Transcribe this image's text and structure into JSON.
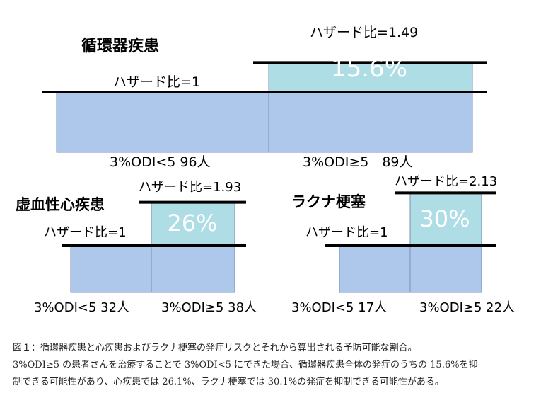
{
  "colors": {
    "base_fill": "#aec8ec",
    "excess_fill": "#aedde5",
    "outline": "#7a8fb0",
    "line": "#000000",
    "percent_text": "#ffffff"
  },
  "chart_data": [
    {
      "type": "bar",
      "title": "循環器疾患",
      "categories": [
        "3%ODI<5 96人",
        "3%ODI≥5　89人"
      ],
      "values": [
        1,
        1.49
      ],
      "value_labels": [
        "ハザード比=1",
        "ハザード比=1.49"
      ],
      "excess_label": "15.6%",
      "ylim": [
        0,
        1.49
      ]
    },
    {
      "type": "bar",
      "title": "虚血性心疾患",
      "categories": [
        "3%ODI<5 32人",
        "3%ODI≥5 38人"
      ],
      "values": [
        1,
        1.93
      ],
      "value_labels": [
        "ハザード比=1",
        "ハザード比=1.93"
      ],
      "excess_label": "26%",
      "ylim": [
        0,
        1.93
      ]
    },
    {
      "type": "bar",
      "title": "ラクナ梗塞",
      "categories": [
        "3%ODI<5 17人",
        "3%ODI≥5 22人"
      ],
      "values": [
        1,
        2.13
      ],
      "value_labels": [
        "ハザード比=1",
        "ハザード比=2.13"
      ],
      "excess_label": "30%",
      "ylim": [
        0,
        2.13
      ]
    }
  ],
  "caption": {
    "line1": "図１：循環器疾患と心疾患およびラクナ梗塞の発症リスクとそれから算出される予防可能な割合。",
    "line2": "3%ODI≥5 の患者さんを治療することで 3%ODI<5 にできた場合、循環器疾患全体の発症のうちの 15.6%を抑",
    "line3": "制できる可能性があり、心疾患では 26.1%、ラクナ梗塞では 30.1%の発症を抑制できる可能性がある。"
  }
}
